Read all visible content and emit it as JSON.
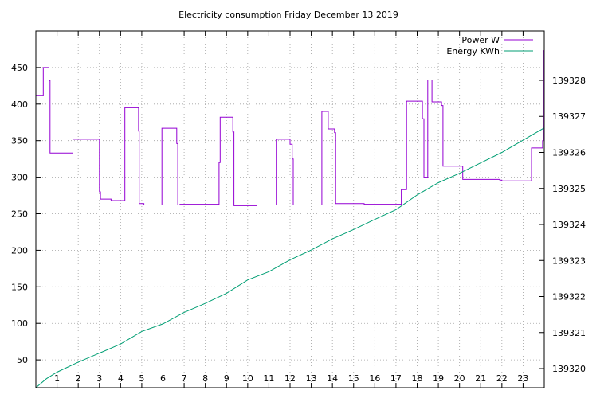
{
  "chart_data": {
    "type": "line",
    "title": "Electricity consumption Friday December 13 2019",
    "xlabel": "",
    "ylabel": "",
    "y2label": "",
    "xlim": [
      0,
      24
    ],
    "ylim": [
      12,
      500
    ],
    "y2lim": [
      139319.47,
      139329.37
    ],
    "x_ticks": [
      1,
      2,
      3,
      4,
      5,
      6,
      7,
      8,
      9,
      10,
      11,
      12,
      13,
      14,
      15,
      16,
      17,
      18,
      19,
      20,
      21,
      22,
      23
    ],
    "y_ticks": [
      50,
      100,
      150,
      200,
      250,
      300,
      350,
      400,
      450
    ],
    "y2_ticks": [
      139320,
      139321,
      139322,
      139323,
      139324,
      139325,
      139326,
      139327,
      139328
    ],
    "grid": true,
    "legend_position": "top-right",
    "series": [
      {
        "name": "Power W",
        "axis": "y",
        "color": "#9400d3",
        "x": [
          0.0,
          0.35,
          0.35,
          0.62,
          0.62,
          0.67,
          0.67,
          1.75,
          1.75,
          3.0,
          3.0,
          3.05,
          3.05,
          3.55,
          3.55,
          4.2,
          4.2,
          4.85,
          4.85,
          4.88,
          4.88,
          5.1,
          5.1,
          5.95,
          5.95,
          6.65,
          6.65,
          6.7,
          6.7,
          6.8,
          6.8,
          8.65,
          8.65,
          8.7,
          8.7,
          9.3,
          9.3,
          9.35,
          9.35,
          10.4,
          10.4,
          11.35,
          11.35,
          12.0,
          12.0,
          12.1,
          12.1,
          12.15,
          12.15,
          13.5,
          13.5,
          13.8,
          13.8,
          14.1,
          14.1,
          14.15,
          14.15,
          15.5,
          15.5,
          17.25,
          17.25,
          17.5,
          17.5,
          18.25,
          18.25,
          18.32,
          18.32,
          18.5,
          18.5,
          18.7,
          18.7,
          19.15,
          19.15,
          19.22,
          19.22,
          20.15,
          20.15,
          21.9,
          21.9,
          22.0,
          22.0,
          23.4,
          23.4,
          23.92,
          23.92,
          23.96,
          23.96,
          24.0
        ],
        "values": [
          412,
          412,
          450,
          450,
          432,
          432,
          333,
          333,
          352,
          352,
          280,
          280,
          270,
          270,
          268,
          268,
          395,
          395,
          363,
          363,
          264,
          264,
          262,
          262,
          367,
          367,
          346,
          346,
          262,
          262,
          263,
          263,
          320,
          320,
          382,
          382,
          362,
          362,
          261,
          261,
          262,
          262,
          352,
          352,
          345,
          345,
          325,
          325,
          262,
          262,
          390,
          390,
          366,
          366,
          361,
          361,
          264,
          264,
          263,
          263,
          283,
          283,
          404,
          404,
          380,
          380,
          300,
          300,
          433,
          433,
          403,
          403,
          398,
          398,
          315,
          315,
          297,
          297,
          296,
          296,
          295,
          295,
          340,
          340,
          350,
          350,
          473,
          473
        ]
      },
      {
        "name": "Energy KWh",
        "axis": "y2",
        "color": "#009e73",
        "x": [
          0,
          0.5,
          1,
          2,
          3,
          4,
          5,
          6,
          7,
          8,
          9,
          10,
          11,
          12,
          13,
          14,
          15,
          16,
          17,
          18,
          19,
          20,
          21,
          22,
          23,
          24
        ],
        "values": [
          139319.47,
          139319.72,
          139319.9,
          139320.18,
          139320.43,
          139320.68,
          139321.03,
          139321.24,
          139321.56,
          139321.81,
          139322.09,
          139322.46,
          139322.69,
          139323.02,
          139323.29,
          139323.6,
          139323.86,
          139324.14,
          139324.41,
          139324.82,
          139325.16,
          139325.42,
          139325.71,
          139326.0,
          139326.34,
          139326.68
        ]
      }
    ]
  }
}
